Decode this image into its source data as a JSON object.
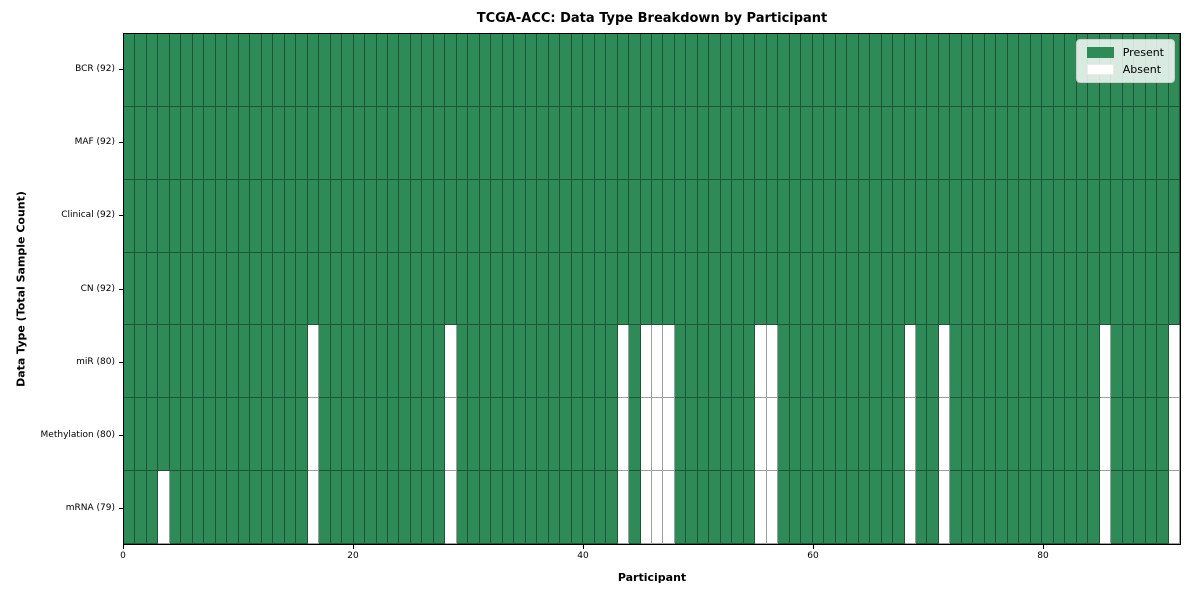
{
  "chart_data": {
    "type": "heatmap",
    "title": "TCGA-ACC: Data Type Breakdown by Participant",
    "xlabel": "Participant",
    "ylabel": "Data Type (Total Sample Count)",
    "n_participants": 92,
    "x_ticks": [
      0,
      20,
      40,
      60,
      80
    ],
    "grid": true,
    "legend_position": "upper right",
    "colors": {
      "present": "#2e8b57",
      "absent": "#ffffff",
      "cell_gridline": "rgba(0,0,0,0.38)",
      "frame": "#000000",
      "legend_border": "#cccccc"
    },
    "legend": [
      {
        "label": "Present",
        "color": "#2e8b57"
      },
      {
        "label": "Absent",
        "color": "#ffffff"
      }
    ],
    "rows": [
      {
        "label": "BCR (92)",
        "data_type": "BCR",
        "present_count": 92,
        "absent_participants": []
      },
      {
        "label": "MAF (92)",
        "data_type": "MAF",
        "present_count": 92,
        "absent_participants": []
      },
      {
        "label": "Clinical (92)",
        "data_type": "Clinical",
        "present_count": 92,
        "absent_participants": []
      },
      {
        "label": "CN (92)",
        "data_type": "CN",
        "present_count": 92,
        "absent_participants": []
      },
      {
        "label": "miR (80)",
        "data_type": "miR",
        "present_count": 80,
        "absent_participants": [
          16,
          28,
          43,
          45,
          46,
          47,
          55,
          56,
          68,
          71,
          85,
          91
        ]
      },
      {
        "label": "Methylation (80)",
        "data_type": "Methylation",
        "present_count": 80,
        "absent_participants": [
          16,
          28,
          43,
          45,
          46,
          47,
          55,
          56,
          68,
          71,
          85,
          91
        ]
      },
      {
        "label": "mRNA (79)",
        "data_type": "mRNA",
        "present_count": 79,
        "absent_participants": [
          3,
          16,
          28,
          43,
          45,
          46,
          47,
          55,
          56,
          68,
          71,
          85,
          91
        ]
      }
    ]
  }
}
